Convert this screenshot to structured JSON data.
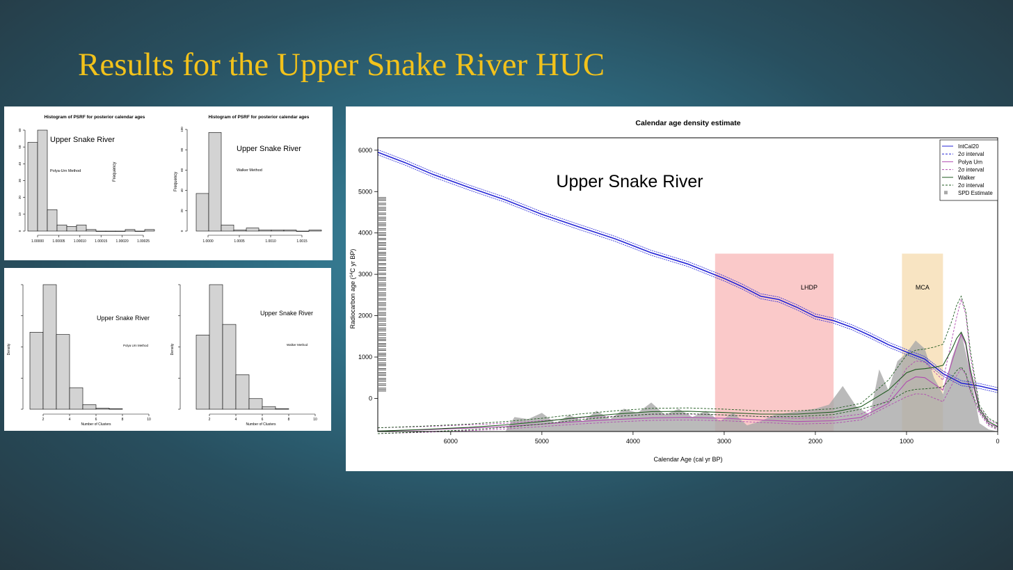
{
  "slide": {
    "title": "Results for the Upper Snake River HUC"
  },
  "colors": {
    "title": "#f2c21b",
    "intcal": "#2323d6",
    "polya": "#b04ab0",
    "walker": "#1f5a1f",
    "spd": "#a9a9a9",
    "lhdp": "#f7a5a5",
    "mca": "#f3d29a"
  },
  "panels": {
    "psrf_polya": {
      "title": "Histogram of PSRF for posterior calendar ages",
      "annotation": "Upper Snake River",
      "method": "Polya-Urn Method",
      "ylabel": "Frequency",
      "y_ticks": [
        "0",
        "10",
        "20",
        "30",
        "40",
        "50",
        "60"
      ],
      "x_ticks": [
        "1.00000",
        "1.00005",
        "1.00010",
        "1.00015",
        "1.00020",
        "1.00025"
      ]
    },
    "psrf_walker": {
      "title": "Histogram of PSRF for posterior calendar ages",
      "annotation": "Upper Snake River",
      "method": "Walker Method",
      "ylabel": "Frequency",
      "y_ticks": [
        "0",
        "20",
        "40",
        "60",
        "80",
        "100"
      ],
      "x_ticks": [
        "1.0000",
        "1.0005",
        "1.0010",
        "1.0015"
      ]
    },
    "clusters_polya": {
      "annotation": "Upper Snake River",
      "method": "Polya Urn Method",
      "ylabel": "Density",
      "xlabel": "Number of Clusters",
      "x_ticks": [
        "2",
        "4",
        "6",
        "8",
        "10"
      ]
    },
    "clusters_walker": {
      "annotation": "Upper Snake River",
      "method": "Walker Method",
      "ylabel": "Density",
      "xlabel": "Number of Clusters",
      "x_ticks": [
        "2",
        "4",
        "6",
        "8",
        "10"
      ]
    }
  },
  "chart_data": [
    {
      "type": "bar",
      "title": "Histogram of PSRF for posterior calendar ages",
      "xlabel": "",
      "ylabel": "Frequency",
      "x": [
        1.0,
        1.00002,
        1.00004,
        1.00006,
        1.00008,
        1.0001,
        1.00012,
        1.00014,
        1.00016,
        1.00018,
        1.0002,
        1.00022,
        1.00024
      ],
      "values": [
        58,
        66,
        14,
        4,
        3,
        4,
        1,
        0,
        0,
        0,
        1,
        0,
        1
      ],
      "ylim": [
        0,
        66
      ]
    },
    {
      "type": "bar",
      "title": "Histogram of PSRF for posterior calendar ages",
      "xlabel": "",
      "ylabel": "Frequency",
      "x": [
        0.9999,
        1.0001,
        1.0003,
        1.0005,
        1.0007,
        1.0009,
        1.0011,
        1.0013,
        1.0015,
        1.0017
      ],
      "values": [
        37,
        97,
        6,
        1,
        3,
        1,
        1,
        1,
        0,
        1
      ],
      "ylim": [
        0,
        100
      ]
    },
    {
      "type": "bar",
      "xlabel": "Number of Clusters",
      "ylabel": "Density",
      "x": [
        1.5,
        2.5,
        3.5,
        4.5,
        5.5,
        6.5,
        7.5
      ],
      "values": [
        0.34,
        0.55,
        0.33,
        0.095,
        0.02,
        0.005,
        0.002
      ],
      "xlim": [
        1,
        10
      ]
    },
    {
      "type": "bar",
      "xlabel": "Number of Clusters",
      "ylabel": "Density",
      "x": [
        1.5,
        2.5,
        3.5,
        4.5,
        5.5,
        6.5,
        7.5
      ],
      "values": [
        0.28,
        0.47,
        0.32,
        0.13,
        0.04,
        0.01,
        0.002
      ],
      "xlim": [
        1,
        10
      ]
    },
    {
      "type": "line",
      "title": "Calendar age density estimate",
      "annotation": "Upper Snake River",
      "xlabel": "Calendar Age (cal yr BP)",
      "ylabel_pre": "Radiocarbon age (",
      "ylabel_sup": "14",
      "ylabel_post": "C yr BP)",
      "xlim": [
        6800,
        0
      ],
      "ylim": [
        -800,
        6300
      ],
      "x_ticks": [
        6000,
        5000,
        4000,
        3000,
        2000,
        1000,
        0
      ],
      "y_ticks": [
        0,
        1000,
        2000,
        3000,
        4000,
        5000,
        6000
      ],
      "legend_position": "top-right",
      "legend": [
        "IntCal20",
        "2σ interval",
        "Polya Urn",
        "2σ interval",
        "Walker",
        "2σ interval",
        "SPD Estimate"
      ],
      "regions": [
        {
          "label": "LHDP",
          "x_from": 3100,
          "x_to": 1800,
          "y_top": 3500
        },
        {
          "label": "MCA",
          "x_from": 1050,
          "x_to": 600,
          "y_top": 3500
        }
      ],
      "series": [
        {
          "name": "IntCal20",
          "x": [
            6800,
            6500,
            6200,
            5800,
            5400,
            5000,
            4600,
            4200,
            3800,
            3400,
            3000,
            2800,
            2600,
            2400,
            2200,
            2000,
            1800,
            1600,
            1400,
            1200,
            1000,
            800,
            600,
            400,
            200,
            0
          ],
          "y": [
            5950,
            5700,
            5420,
            5100,
            4800,
            4450,
            4150,
            3860,
            3520,
            3250,
            2900,
            2700,
            2470,
            2390,
            2200,
            1980,
            1880,
            1720,
            1520,
            1300,
            1120,
            950,
            600,
            370,
            300,
            200
          ]
        },
        {
          "name": "Polya Urn",
          "x": [
            6800,
            6300,
            5800,
            5400,
            5000,
            4600,
            4200,
            3800,
            3400,
            3000,
            2600,
            2200,
            1800,
            1500,
            1200,
            1000,
            900,
            800,
            700,
            600,
            500,
            450,
            400,
            350,
            300,
            200,
            100,
            0
          ],
          "y": [
            -790,
            -760,
            -720,
            -680,
            -620,
            -560,
            -510,
            -470,
            -460,
            -480,
            -520,
            -560,
            -540,
            -460,
            -120,
            400,
            520,
            500,
            350,
            200,
            900,
            1250,
            1550,
            1300,
            600,
            -300,
            -600,
            -700
          ]
        },
        {
          "name": "Walker",
          "x": [
            6800,
            6300,
            5800,
            5400,
            5000,
            4600,
            4200,
            3800,
            3400,
            3000,
            2600,
            2200,
            1800,
            1500,
            1200,
            1000,
            900,
            800,
            700,
            600,
            500,
            450,
            400,
            350,
            300,
            200,
            100,
            0
          ],
          "y": [
            -790,
            -750,
            -700,
            -640,
            -560,
            -460,
            -380,
            -320,
            -310,
            -340,
            -380,
            -380,
            -330,
            -200,
            200,
            620,
            700,
            720,
            750,
            800,
            1200,
            1450,
            1600,
            1350,
            700,
            -250,
            -560,
            -680
          ]
        }
      ],
      "spd": {
        "x": [
          6800,
          5400,
          5300,
          5150,
          5000,
          4850,
          4700,
          4550,
          4400,
          4250,
          4100,
          3950,
          3800,
          3650,
          3500,
          3350,
          3200,
          3050,
          2900,
          2750,
          2600,
          2450,
          2300,
          2150,
          2000,
          1850,
          1700,
          1550,
          1400,
          1300,
          1200,
          1100,
          1000,
          900,
          800,
          700,
          600,
          500,
          400,
          300,
          200,
          100,
          0
        ],
        "y": [
          -800,
          -800,
          -450,
          -500,
          -350,
          -600,
          -400,
          -550,
          -300,
          -500,
          -250,
          -350,
          -100,
          -400,
          -250,
          -450,
          -300,
          -550,
          -350,
          -650,
          -550,
          -400,
          -350,
          -300,
          -250,
          -150,
          300,
          -200,
          -400,
          700,
          200,
          900,
          1100,
          1400,
          1200,
          500,
          100,
          1000,
          1600,
          600,
          -600,
          -750,
          -800
        ]
      }
    }
  ]
}
